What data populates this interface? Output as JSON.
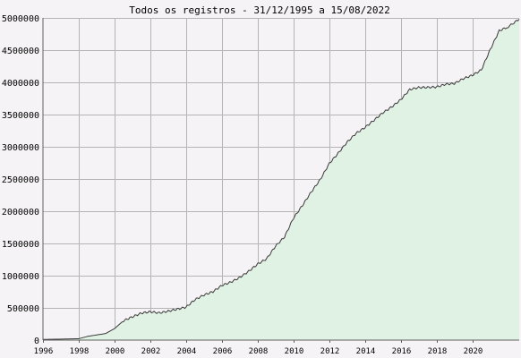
{
  "chart_data": {
    "type": "area",
    "title": "Todos os registros - 31/12/1995 a 15/08/2022",
    "xlabel": "",
    "ylabel": "",
    "xlim": [
      1996.0,
      2022.62
    ],
    "ylim": [
      0,
      5000000
    ],
    "grid": true,
    "legend": "none",
    "x_ticks": [
      1996,
      1998,
      2000,
      2002,
      2004,
      2006,
      2008,
      2010,
      2012,
      2014,
      2016,
      2018,
      2020
    ],
    "x_tick_labels": [
      "1996",
      "1998",
      "2000",
      "2002",
      "2004",
      "2006",
      "2008",
      "2010",
      "2012",
      "2014",
      "2016",
      "2018",
      "2020"
    ],
    "y_ticks": [
      0,
      500000,
      1000000,
      1500000,
      2000000,
      2500000,
      3000000,
      3500000,
      4000000,
      4500000,
      5000000
    ],
    "y_tick_labels": [
      "0",
      "500000",
      "1000000",
      "1500000",
      "2000000",
      "2500000",
      "3000000",
      "3500000",
      "4000000",
      "4500000",
      "5000000"
    ],
    "colors": {
      "line": "#3a3a3a",
      "fill": "#e0f2e4",
      "grid": "#b4b4b4",
      "plot_bg": "#f5f3f5"
    },
    "series": [
      {
        "x": [
          1996.0,
          1997.0,
          1998.0,
          1998.5,
          1999.0,
          1999.5,
          2000.0,
          2000.5,
          2001.0,
          2001.5,
          2002.0,
          2002.5,
          2003.0,
          2003.5,
          2004.0,
          2004.5,
          2005.0,
          2005.5,
          2006.0,
          2006.5,
          2007.0,
          2007.5,
          2008.0,
          2008.5,
          2009.0,
          2009.5,
          2010.0,
          2010.5,
          2011.0,
          2011.5,
          2012.0,
          2012.5,
          2013.0,
          2013.5,
          2014.0,
          2014.5,
          2015.0,
          2015.5,
          2016.0,
          2016.5,
          2017.0,
          2017.5,
          2018.0,
          2018.5,
          2019.0,
          2019.5,
          2020.0,
          2020.5,
          2021.0,
          2021.5,
          2022.0,
          2022.62
        ],
        "y": [
          10000,
          15000,
          30000,
          50000,
          80000,
          110000,
          170000,
          300000,
          370000,
          410000,
          440000,
          430000,
          440000,
          480000,
          520000,
          620000,
          700000,
          760000,
          840000,
          900000,
          980000,
          1060000,
          1180000,
          1270000,
          1450000,
          1600000,
          1900000,
          2080000,
          2300000,
          2500000,
          2730000,
          2900000,
          3080000,
          3200000,
          3300000,
          3420000,
          3520000,
          3620000,
          3740000,
          3880000,
          3920000,
          3930000,
          3920000,
          3970000,
          3990000,
          4050000,
          4110000,
          4200000,
          4500000,
          4800000,
          4870000,
          4980000
        ]
      }
    ]
  }
}
